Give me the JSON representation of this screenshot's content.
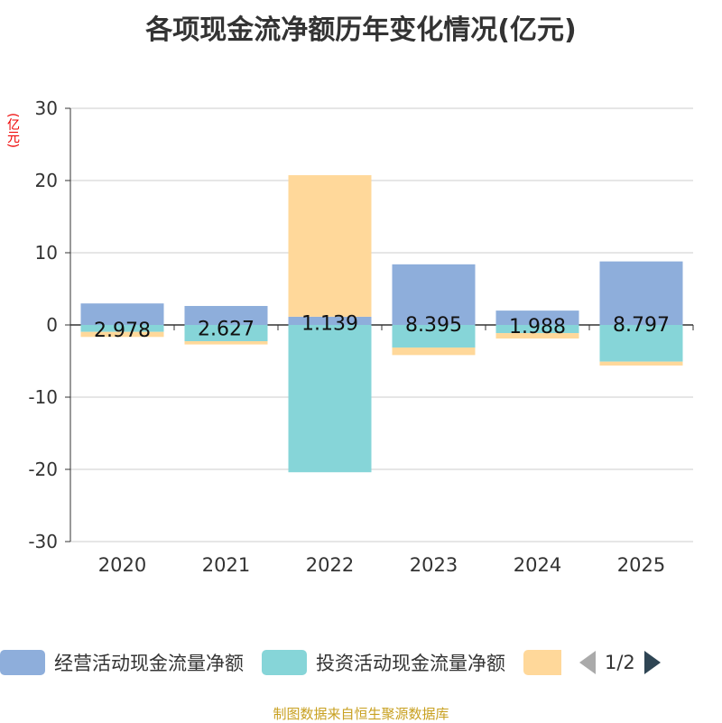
{
  "chart_data": {
    "type": "bar",
    "stacked": true,
    "title": "各项现金流净额历年变化情况(亿元)",
    "unit": "(亿元)",
    "categories": [
      "2020",
      "2021",
      "2022",
      "2023",
      "2024",
      "2025"
    ],
    "ylim": [
      -30,
      30
    ],
    "yticks": [
      30,
      20,
      10,
      0,
      -10,
      -20,
      -30
    ],
    "grid": true,
    "legend_placement": "bottom",
    "series": [
      {
        "name": "经营活动现金流量净额",
        "color": "#8eaedb",
        "values": [
          2.978,
          2.627,
          1.139,
          8.395,
          1.988,
          8.797
        ],
        "labels": [
          "2.978",
          "2.627",
          "1.139",
          "8.395",
          "1.988",
          "8.797"
        ]
      },
      {
        "name": "投资活动现金流量净额",
        "color": "#86d5d8",
        "values": [
          -0.96,
          -2.25,
          -20.4,
          -3.13,
          -1.13,
          -5.08
        ]
      },
      {
        "name": "",
        "color": "#ffd89a",
        "values": [
          -0.7,
          -0.45,
          19.6,
          -1.04,
          -0.75,
          -0.54
        ]
      }
    ]
  },
  "legend": {
    "page": "1/2"
  },
  "footer": "制图数据来自恒生聚源数据库"
}
